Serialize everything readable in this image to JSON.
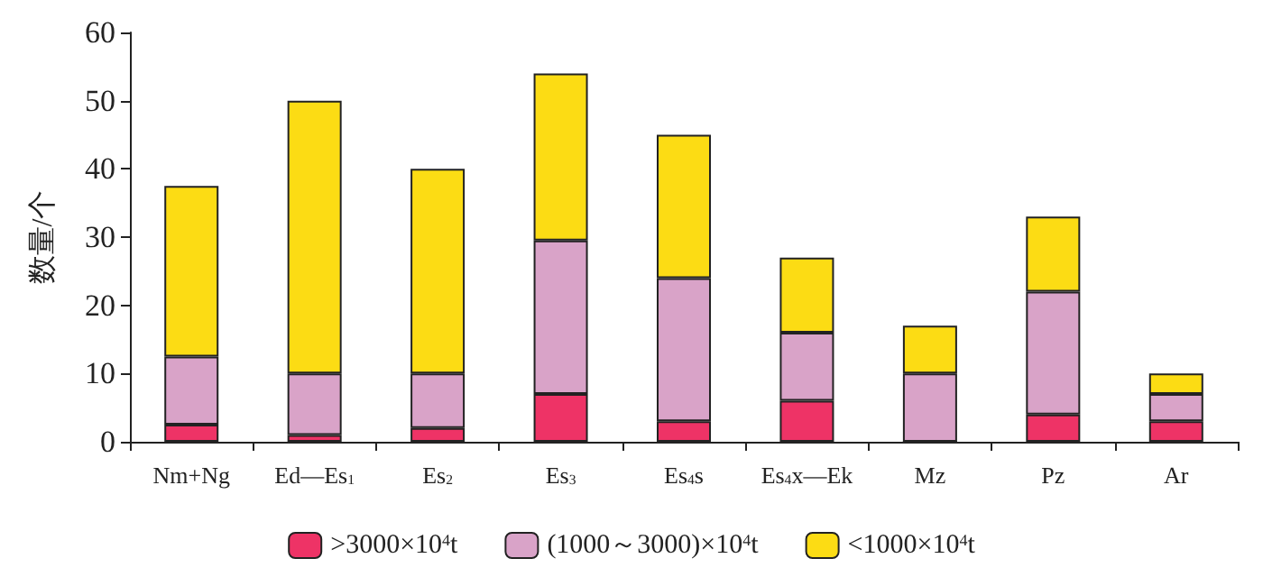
{
  "chart_data": {
    "type": "bar",
    "stacked": true,
    "ylabel": "数量/个",
    "categories": [
      "Nm+Ng",
      "Ed—Es$_{1}$",
      "Es$_{2}$",
      "Es$_{3}$",
      "Es$_{4}$s",
      "Es$_{4}$x—Ek",
      "Mz",
      "Pz",
      "Ar"
    ],
    "series": [
      {
        "name": ">3000×10$^{4}$t",
        "color": "#ee3366",
        "values": [
          2.5,
          1,
          2,
          7,
          3,
          6,
          0,
          4,
          3
        ]
      },
      {
        "name": "(1000～3000)×10$^{4}$t",
        "color": "#d9a3c8",
        "values": [
          10,
          9,
          8,
          22.5,
          21,
          10,
          10,
          18,
          4
        ]
      },
      {
        "name": "<1000×10$^{4}$t",
        "color": "#fcdc14",
        "values": [
          25,
          40,
          30,
          24.5,
          21,
          11,
          7,
          11,
          3
        ]
      }
    ],
    "ylim": [
      0,
      60
    ],
    "yticks": [
      0,
      10,
      20,
      30,
      40,
      50,
      60
    ],
    "grid": false,
    "legend": "bottom"
  }
}
